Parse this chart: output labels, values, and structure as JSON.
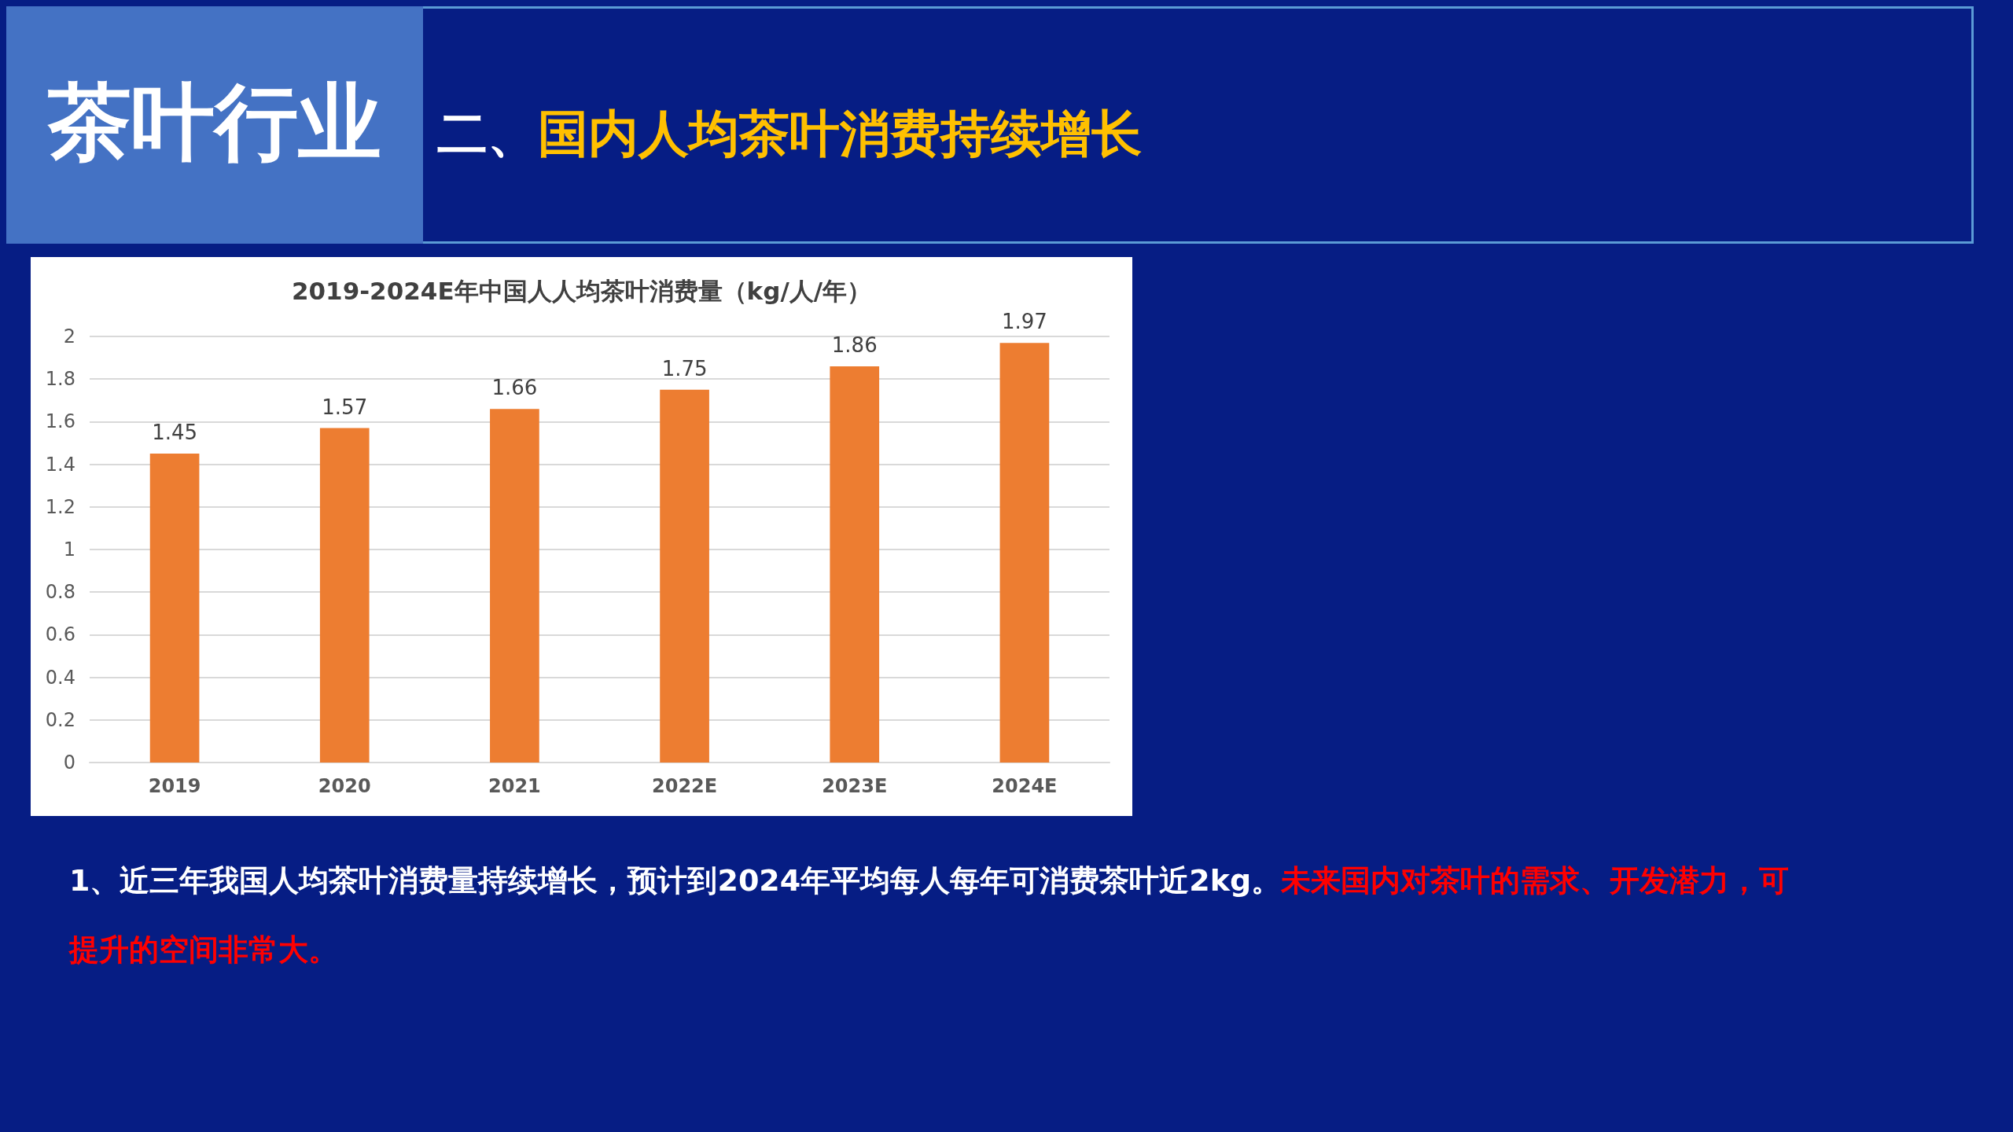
{
  "chart_data": {
    "type": "bar",
    "title": "2019-2024E年中国人人均茶叶消费量（kg/人/年）",
    "categories": [
      "2019",
      "2020",
      "2021",
      "2022E",
      "2023E",
      "2024E"
    ],
    "values": [
      1.45,
      1.57,
      1.66,
      1.75,
      1.86,
      1.97
    ],
    "color": "#ed7d31",
    "ylim": [
      0,
      2
    ],
    "yticks": [
      0,
      0.2,
      0.4,
      0.6,
      0.8,
      1,
      1.2,
      1.4,
      1.6,
      1.8,
      2
    ],
    "grid": "y",
    "data_labels": true,
    "annotations": [
      "茶叶行业",
      "二、",
      "国内人均茶叶消费持续增长",
      "1、近三年我国人均茶叶消费量持续增长，预计到2024年平均每人每年可消费茶叶近2kg。",
      "未来国内对茶叶的需求、开发潜力，可",
      "提升的空间非常大。"
    ]
  }
}
